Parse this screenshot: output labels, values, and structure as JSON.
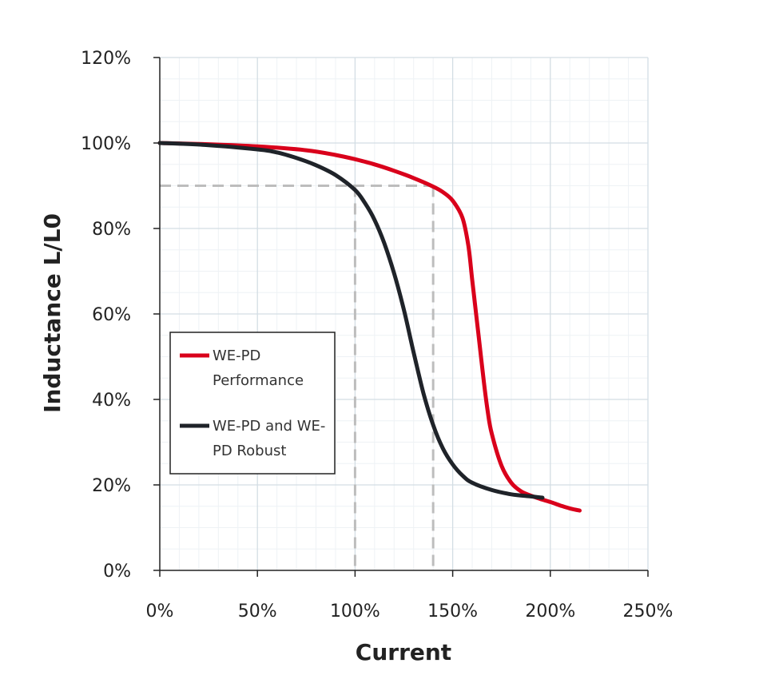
{
  "chart_data": {
    "type": "line",
    "title": "",
    "xlabel": "Current",
    "ylabel": "Inductance L/L0",
    "xlim": [
      0,
      250
    ],
    "ylim": [
      0,
      120
    ],
    "x_ticks": [
      "0%",
      "50%",
      "100%",
      "150%",
      "200%",
      "250%"
    ],
    "y_ticks": [
      "0%",
      "20%",
      "40%",
      "60%",
      "80%",
      "100%",
      "120%"
    ],
    "grid": true,
    "legend_position": "left-middle",
    "series": [
      {
        "name": "WE-PD Performance",
        "color": "#d9001b",
        "points": [
          [
            0,
            100
          ],
          [
            25,
            99.7
          ],
          [
            50,
            99.2
          ],
          [
            75,
            98.3
          ],
          [
            90,
            97.2
          ],
          [
            100,
            96.2
          ],
          [
            110,
            95
          ],
          [
            120,
            93.5
          ],
          [
            130,
            91.8
          ],
          [
            140,
            89.8
          ],
          [
            145,
            88.5
          ],
          [
            150,
            86.5
          ],
          [
            155,
            82.5
          ],
          [
            158,
            76
          ],
          [
            160,
            68
          ],
          [
            162,
            60
          ],
          [
            164,
            52
          ],
          [
            166,
            44
          ],
          [
            168,
            37
          ],
          [
            170,
            32
          ],
          [
            175,
            24.5
          ],
          [
            180,
            20.5
          ],
          [
            185,
            18.5
          ],
          [
            190,
            17.5
          ],
          [
            195,
            16.7
          ],
          [
            200,
            16
          ],
          [
            205,
            15.2
          ],
          [
            210,
            14.5
          ],
          [
            215,
            14
          ]
        ]
      },
      {
        "name": "WE-PD and WE-PD Robust",
        "color": "#1f2329",
        "points": [
          [
            0,
            100
          ],
          [
            25,
            99.5
          ],
          [
            50,
            98.5
          ],
          [
            60,
            97.8
          ],
          [
            70,
            96.5
          ],
          [
            80,
            94.8
          ],
          [
            90,
            92.5
          ],
          [
            100,
            89
          ],
          [
            105,
            86
          ],
          [
            110,
            82
          ],
          [
            115,
            76.5
          ],
          [
            120,
            69.5
          ],
          [
            125,
            61
          ],
          [
            130,
            51
          ],
          [
            135,
            41.5
          ],
          [
            140,
            34
          ],
          [
            145,
            28.5
          ],
          [
            150,
            24.8
          ],
          [
            155,
            22.2
          ],
          [
            160,
            20.5
          ],
          [
            170,
            18.8
          ],
          [
            180,
            17.8
          ],
          [
            190,
            17.3
          ],
          [
            196,
            17
          ]
        ]
      }
    ],
    "legend": [
      {
        "line1": "WE-PD",
        "line2": "Performance"
      },
      {
        "line1": "WE-PD and WE-",
        "line2": "PD Robust"
      }
    ],
    "reference_lines": [
      {
        "x": 100,
        "y": 90
      },
      {
        "x": 140,
        "y": 90
      }
    ]
  }
}
